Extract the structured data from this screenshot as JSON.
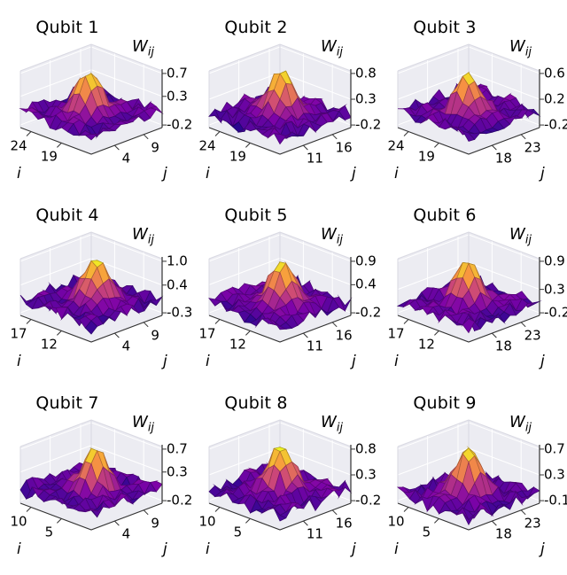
{
  "figure": {
    "background": "#ffffff",
    "pane_color": "#ececf2",
    "pane_edge_color": "#d9d9e2",
    "grid_color": "#ffffff",
    "axis_color": "#333333",
    "colormap_name": "plasma",
    "colormap_stops": [
      "#0d0887",
      "#7e03a8",
      "#cc4778",
      "#f89540",
      "#f0f921"
    ]
  },
  "chart_data": [
    {
      "type": "surface",
      "title": "Qubit 1",
      "zlabel_base": "W",
      "zlabel_sub": "ij",
      "xlabel": "i",
      "ylabel": "j",
      "i_ticks": [
        "24",
        "19"
      ],
      "j_ticks": [
        "4",
        "9"
      ],
      "z_ticks": [
        "0.7",
        "0.3",
        "-0.2"
      ],
      "surface": {
        "peak": 0.74,
        "base": 0.03,
        "sigma": 0.13,
        "noise": 0.1,
        "seed": 1,
        "grid": 13,
        "shape": "single central peak, noisy low surroundings"
      }
    },
    {
      "type": "surface",
      "title": "Qubit 2",
      "zlabel_base": "W",
      "zlabel_sub": "ij",
      "xlabel": "i",
      "ylabel": "j",
      "i_ticks": [
        "24",
        "19"
      ],
      "j_ticks": [
        "11",
        "16"
      ],
      "z_ticks": [
        "0.8",
        "0.3",
        "-0.2"
      ],
      "surface": {
        "peak": 0.84,
        "base": 0.03,
        "sigma": 0.13,
        "noise": 0.11,
        "seed": 2,
        "grid": 13,
        "shape": "single central peak, noisy low surroundings"
      }
    },
    {
      "type": "surface",
      "title": "Qubit 3",
      "zlabel_base": "W",
      "zlabel_sub": "ij",
      "xlabel": "i",
      "ylabel": "j",
      "i_ticks": [
        "24",
        "19"
      ],
      "j_ticks": [
        "18",
        "23"
      ],
      "z_ticks": [
        "0.6",
        "0.2",
        "-0.2"
      ],
      "surface": {
        "peak": 0.64,
        "base": 0.03,
        "sigma": 0.12,
        "noise": 0.09,
        "seed": 3,
        "grid": 13,
        "shape": "single central peak, noisy low surroundings"
      }
    },
    {
      "type": "surface",
      "title": "Qubit 4",
      "zlabel_base": "W",
      "zlabel_sub": "ij",
      "xlabel": "i",
      "ylabel": "j",
      "i_ticks": [
        "17",
        "12"
      ],
      "j_ticks": [
        "4",
        "9"
      ],
      "z_ticks": [
        "1.0",
        "0.4",
        "-0.3"
      ],
      "surface": {
        "peak": 1.05,
        "base": 0.04,
        "sigma": 0.13,
        "noise": 0.13,
        "seed": 4,
        "grid": 13,
        "shape": "single central peak, noisy low surroundings"
      }
    },
    {
      "type": "surface",
      "title": "Qubit 5",
      "zlabel_base": "W",
      "zlabel_sub": "ij",
      "xlabel": "i",
      "ylabel": "j",
      "i_ticks": [
        "17",
        "12"
      ],
      "j_ticks": [
        "11",
        "16"
      ],
      "z_ticks": [
        "0.9",
        "0.4",
        "-0.2"
      ],
      "surface": {
        "peak": 0.95,
        "base": 0.04,
        "sigma": 0.13,
        "noise": 0.12,
        "seed": 5,
        "grid": 13,
        "shape": "single central peak, noisy low surroundings"
      }
    },
    {
      "type": "surface",
      "title": "Qubit 6",
      "zlabel_base": "W",
      "zlabel_sub": "ij",
      "xlabel": "i",
      "ylabel": "j",
      "i_ticks": [
        "17",
        "12"
      ],
      "j_ticks": [
        "18",
        "23"
      ],
      "z_ticks": [
        "0.9",
        "0.3",
        "-0.2"
      ],
      "surface": {
        "peak": 0.94,
        "base": 0.03,
        "sigma": 0.12,
        "noise": 0.12,
        "seed": 6,
        "grid": 13,
        "shape": "single central peak, noisy low surroundings"
      }
    },
    {
      "type": "surface",
      "title": "Qubit 7",
      "zlabel_base": "W",
      "zlabel_sub": "ij",
      "xlabel": "i",
      "ylabel": "j",
      "i_ticks": [
        "10",
        "5"
      ],
      "j_ticks": [
        "4",
        "9"
      ],
      "z_ticks": [
        "0.7",
        "0.3",
        "-0.2"
      ],
      "surface": {
        "peak": 0.74,
        "base": 0.03,
        "sigma": 0.12,
        "noise": 0.1,
        "seed": 7,
        "grid": 13,
        "shape": "single central peak, noisy low surroundings"
      }
    },
    {
      "type": "surface",
      "title": "Qubit 8",
      "zlabel_base": "W",
      "zlabel_sub": "ij",
      "xlabel": "i",
      "ylabel": "j",
      "i_ticks": [
        "10",
        "5"
      ],
      "j_ticks": [
        "11",
        "16"
      ],
      "z_ticks": [
        "0.8",
        "0.3",
        "-0.2"
      ],
      "surface": {
        "peak": 0.84,
        "base": 0.03,
        "sigma": 0.13,
        "noise": 0.11,
        "seed": 8,
        "grid": 13,
        "shape": "single central peak, noisy low surroundings"
      }
    },
    {
      "type": "surface",
      "title": "Qubit 9",
      "zlabel_base": "W",
      "zlabel_sub": "ij",
      "xlabel": "i",
      "ylabel": "j",
      "i_ticks": [
        "10",
        "5"
      ],
      "j_ticks": [
        "18",
        "23"
      ],
      "z_ticks": [
        "0.7",
        "0.3",
        "-0.1"
      ],
      "surface": {
        "peak": 0.74,
        "base": 0.03,
        "sigma": 0.13,
        "noise": 0.1,
        "seed": 9,
        "grid": 13,
        "shape": "single central peak, noisy low surroundings"
      }
    }
  ]
}
